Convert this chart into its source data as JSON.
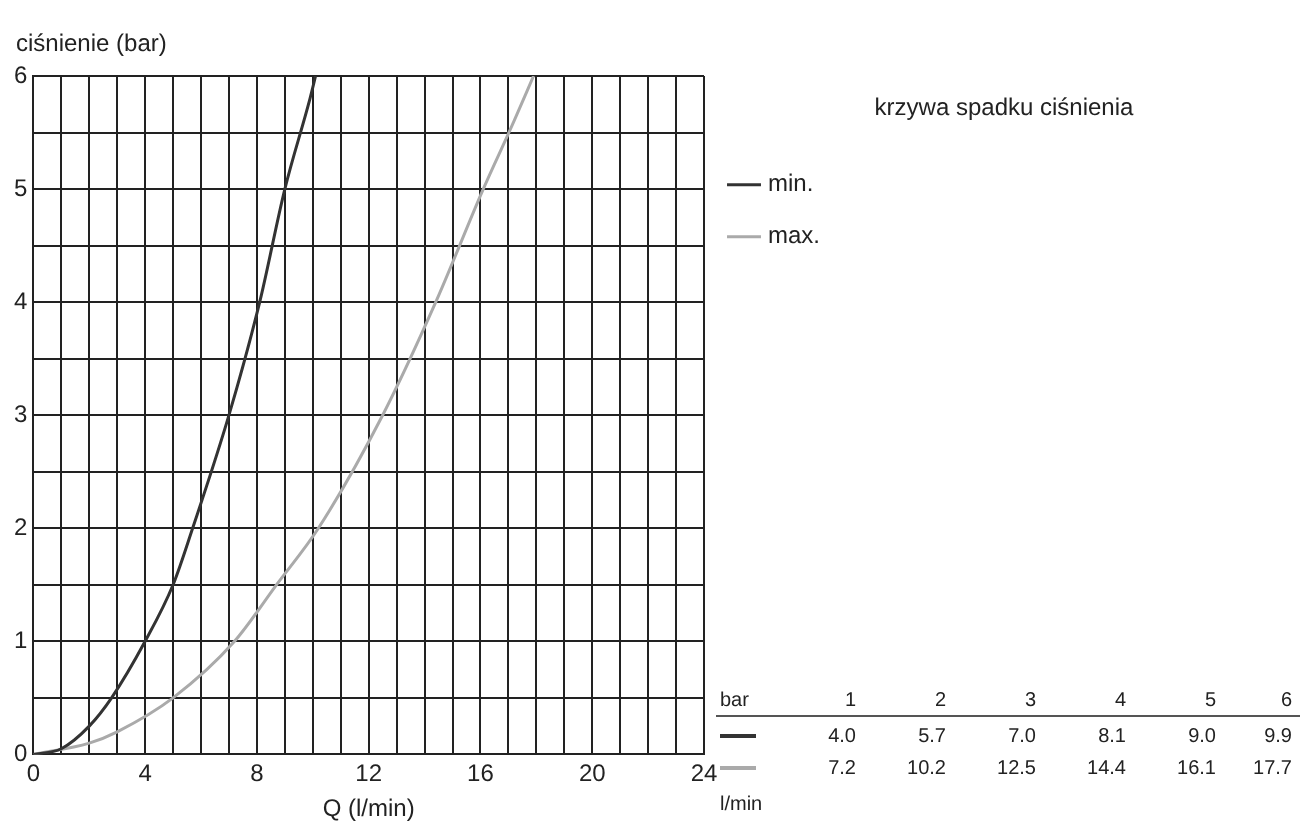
{
  "chart_data": {
    "type": "line",
    "xlabel": "Q (l/min)",
    "ylabel": "ciśnienie (bar)",
    "legend_title": "krzywa spadku ciśnienia",
    "legend": "right",
    "grid": true,
    "xlim": [
      0,
      24
    ],
    "ylim": [
      0,
      6
    ],
    "xticks": [
      0,
      {
        "value": 1,
        "label": null
      },
      {
        "value": 2,
        "label": null
      },
      {
        "value": 3,
        "label": null
      },
      4,
      {
        "value": 5,
        "label": null
      },
      {
        "value": 6,
        "label": null
      },
      {
        "value": 7,
        "label": null
      },
      8,
      {
        "value": 9,
        "label": null
      },
      {
        "value": 10,
        "label": null
      },
      {
        "value": 11,
        "label": null
      },
      12,
      {
        "value": 13,
        "label": null
      },
      {
        "value": 14,
        "label": null
      },
      {
        "value": 15,
        "label": null
      },
      16,
      {
        "value": 17,
        "label": null
      },
      {
        "value": 18,
        "label": null
      },
      {
        "value": 19,
        "label": null
      },
      20,
      {
        "value": 21,
        "label": null
      },
      {
        "value": 22,
        "label": null
      },
      {
        "value": 23,
        "label": null
      },
      24
    ],
    "yticks": [
      0,
      {
        "value": 0.5,
        "label": null
      },
      1,
      {
        "value": 1.5,
        "label": null
      },
      2,
      {
        "value": 2.5,
        "label": null
      },
      3,
      {
        "value": 3.5,
        "label": null
      },
      4,
      {
        "value": 4.5,
        "label": null
      },
      5,
      {
        "value": 5.5,
        "label": null
      },
      6
    ],
    "series": [
      {
        "name": "min.",
        "color": "#333333",
        "x": [
          0,
          1,
          2,
          2.8,
          4,
          5,
          5.7,
          7,
          8.1,
          9,
          9.9,
          10.1
        ],
        "values": [
          0,
          0.05,
          0.25,
          0.5,
          1,
          1.5,
          2,
          3,
          4,
          5,
          5.8,
          6
        ]
      },
      {
        "name": "max.",
        "color": "#aaaaaa",
        "x": [
          0,
          2,
          3,
          5,
          7.2,
          8.7,
          10.2,
          12.5,
          14.4,
          16.1,
          17.2,
          17.9
        ],
        "values": [
          0,
          0.1,
          0.2,
          0.5,
          1,
          1.5,
          2,
          3,
          4,
          5,
          5.6,
          6
        ]
      }
    ],
    "annotations": [
      "bar",
      "1",
      "2",
      "3",
      "4",
      "5",
      "6",
      "4.0",
      "5.7",
      "7.0",
      "8.1",
      "9.0",
      "9.9",
      "7.2",
      "10.2",
      "12.5",
      "14.4",
      "16.1",
      "17.7",
      "l/min"
    ]
  }
}
